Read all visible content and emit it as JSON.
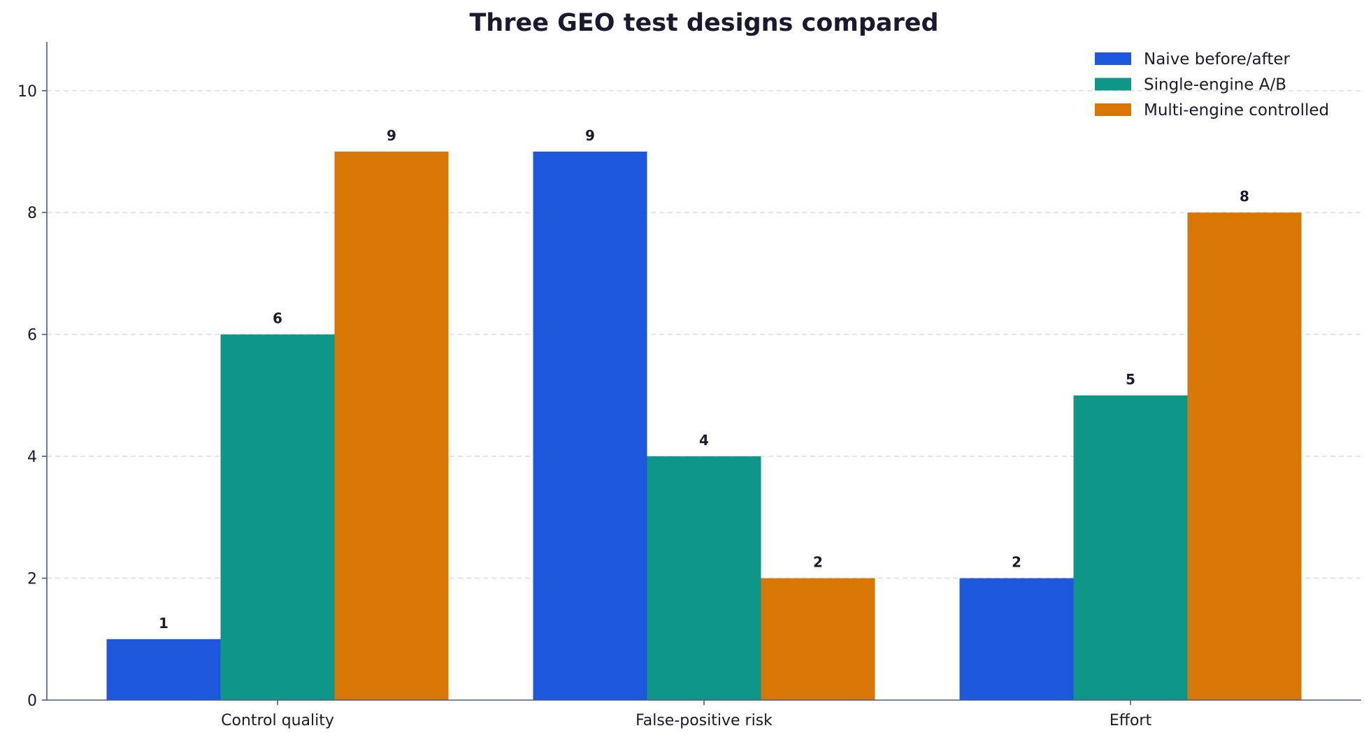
{
  "chart_data": {
    "type": "bar",
    "title": "Three GEO test designs compared",
    "xlabel": "",
    "ylabel": "",
    "categories": [
      "Control quality",
      "False-positive risk",
      "Effort"
    ],
    "series": [
      {
        "name": "Naive before/after",
        "values": [
          1,
          9,
          2
        ],
        "color": "#1c57dc"
      },
      {
        "name": "Single-engine A/B",
        "values": [
          6,
          4,
          5
        ],
        "color": "#0e9688"
      },
      {
        "name": "Multi-engine controlled",
        "values": [
          9,
          2,
          8
        ],
        "color": "#d97706"
      }
    ],
    "ylim": [
      0,
      10.8
    ],
    "yticks": [
      0,
      2,
      4,
      6,
      8,
      10
    ],
    "grid": "y-dashed",
    "legend": "top-right",
    "axis_color": "#4a5a8a",
    "grid_color": "#dddddd",
    "text_color": "#1a1a2e"
  }
}
